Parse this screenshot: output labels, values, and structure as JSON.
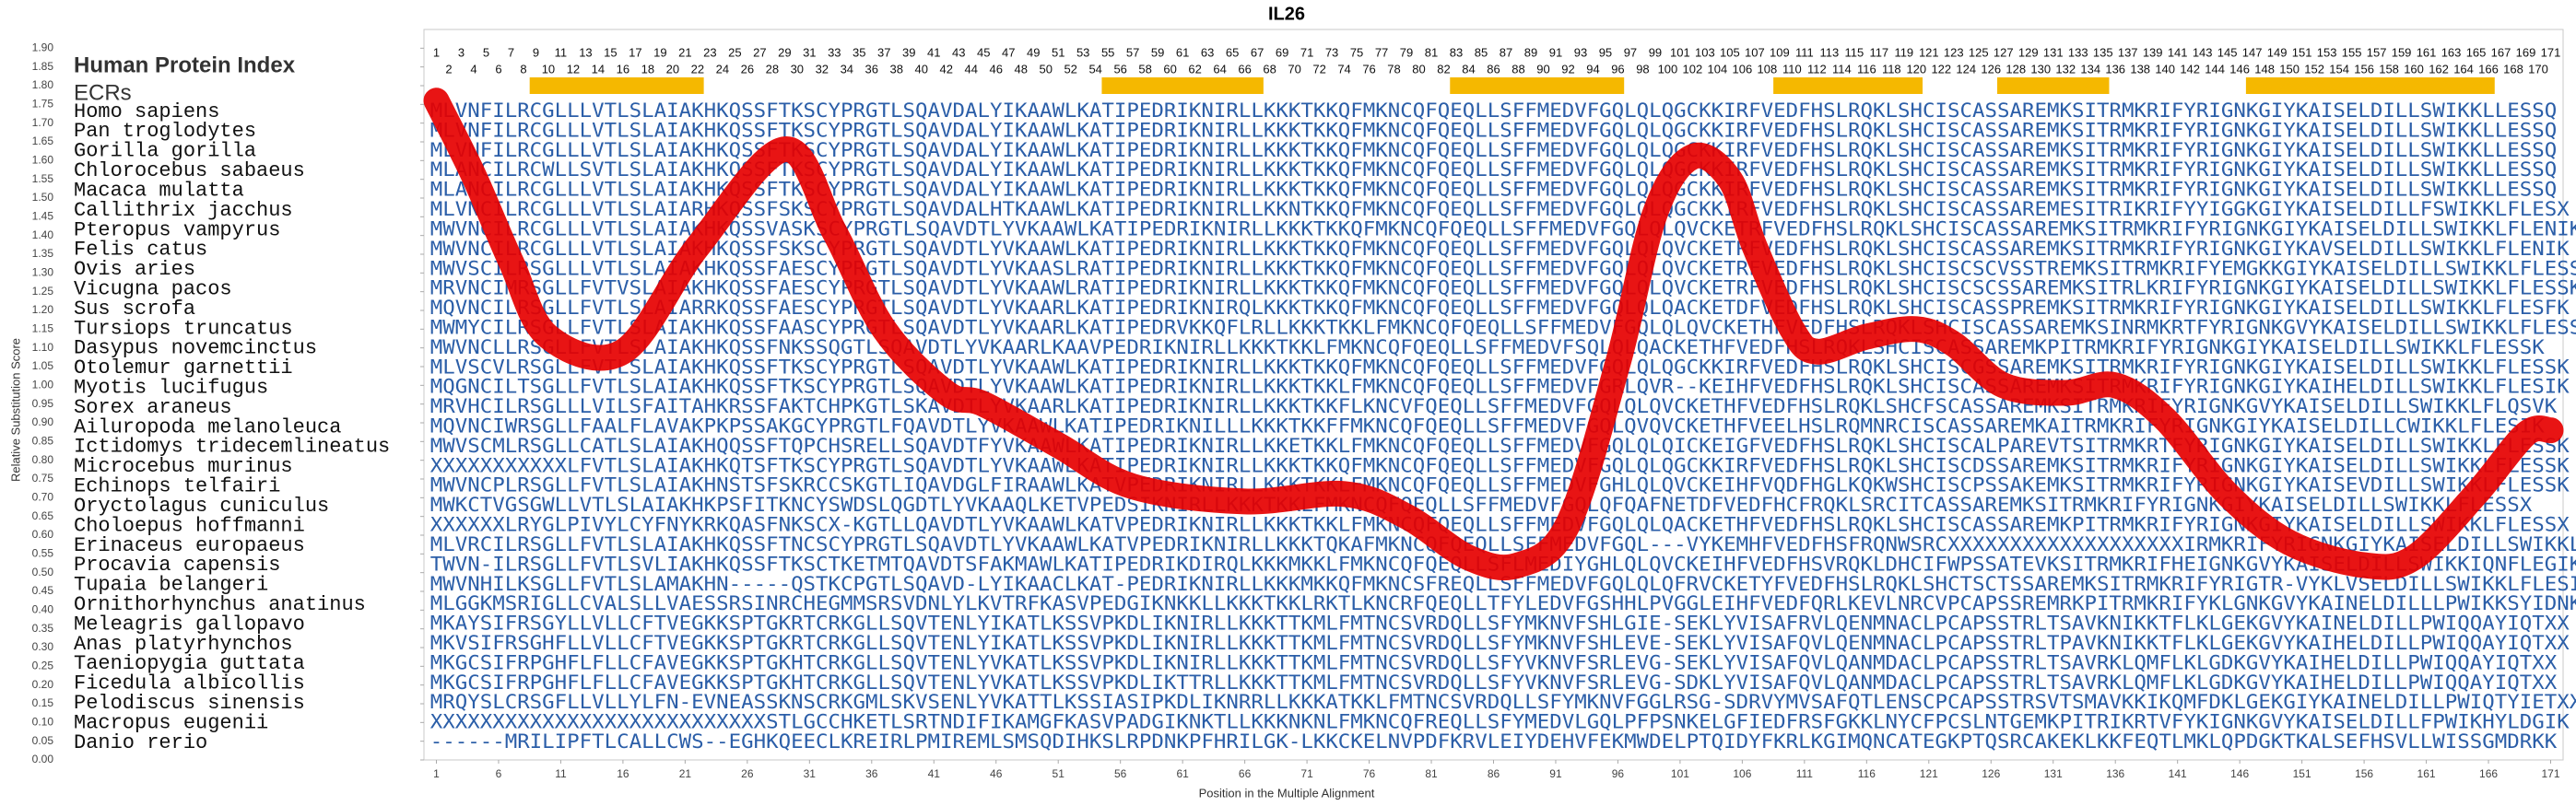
{
  "chart_data": {
    "type": "line",
    "title": "IL26",
    "xlabel": "Position in the Multiple Alignment",
    "ylabel": "Relative Substitution Score",
    "index_title": "Human Protein Index",
    "ecr_title": "ECRs",
    "xlim": [
      0,
      172
    ],
    "ylim": [
      0,
      1.95
    ],
    "xticks": [
      1,
      6,
      11,
      16,
      21,
      26,
      31,
      36,
      41,
      46,
      51,
      56,
      61,
      66,
      71,
      76,
      81,
      86,
      91,
      96,
      101,
      106,
      111,
      116,
      121,
      126,
      131,
      136,
      141,
      146,
      151,
      156,
      161,
      166,
      171
    ],
    "yticks": [
      {
        "value": 0,
        "label": "0.00"
      },
      0.05,
      {
        "value": 0.1,
        "label": "0.10"
      },
      0.15,
      {
        "value": 0.2,
        "label": "0.20"
      },
      0.25,
      {
        "value": 0.3,
        "label": "0.30"
      },
      0.35,
      {
        "value": 0.4,
        "label": "0.40"
      },
      0.45,
      {
        "value": 0.5,
        "label": "0.50"
      },
      0.55,
      {
        "value": 0.6,
        "label": "0.60"
      },
      0.65,
      {
        "value": 0.7,
        "label": "0.70"
      },
      0.75,
      {
        "value": 0.8,
        "label": "0.80"
      },
      0.85,
      {
        "value": 0.9,
        "label": "0.90"
      },
      0.95,
      {
        "value": 1,
        "label": "1.00"
      },
      1.05,
      {
        "value": 1.1,
        "label": "1.10"
      },
      1.15,
      {
        "value": 1.2,
        "label": "1.20"
      },
      1.25,
      {
        "value": 1.3,
        "label": "1.30"
      },
      1.35,
      {
        "value": 1.4,
        "label": "1.40"
      },
      1.45,
      {
        "value": 1.5,
        "label": "1.50"
      },
      1.55,
      {
        "value": 1.6,
        "label": "1.60"
      },
      1.65,
      {
        "value": 1.7,
        "label": "1.70"
      },
      1.75,
      {
        "value": 1.8,
        "label": "1.80"
      },
      1.85,
      {
        "value": 1.9,
        "label": "1.90"
      }
    ],
    "protein_index": [
      1,
      2,
      3,
      4,
      5,
      6,
      7,
      8,
      9,
      10,
      11,
      12,
      13,
      14,
      15,
      16,
      17,
      18,
      19,
      20,
      21,
      22,
      23,
      24,
      25,
      26,
      27,
      28,
      29,
      30,
      31,
      32,
      33,
      34,
      35,
      36,
      37,
      38,
      39,
      40,
      41,
      42,
      43,
      44,
      45,
      46,
      47,
      48,
      49,
      50,
      51,
      52,
      53,
      54,
      55,
      56,
      57,
      58,
      59,
      60,
      61,
      62,
      63,
      64,
      65,
      66,
      67,
      68,
      69,
      70,
      71,
      72,
      73,
      74,
      75,
      76,
      77,
      78,
      79,
      80,
      81,
      82,
      83,
      84,
      85,
      86,
      87,
      88,
      89,
      90,
      91,
      92,
      93,
      94,
      95,
      96,
      97,
      98,
      99,
      100,
      101,
      102,
      103,
      104,
      105,
      106,
      107,
      108,
      109,
      110,
      111,
      112,
      113,
      114,
      115,
      116,
      117,
      118,
      119,
      120,
      121,
      122,
      123,
      124,
      125,
      126,
      127,
      128,
      129,
      130,
      131,
      132,
      133,
      134,
      135,
      136,
      137,
      138,
      139,
      140,
      141,
      142,
      143,
      144,
      145,
      146,
      147,
      148,
      149,
      150,
      151,
      152,
      153,
      154,
      155,
      156,
      157,
      158,
      159,
      160,
      161,
      162,
      163,
      164,
      165,
      166,
      167,
      168,
      169,
      170,
      171
    ],
    "ecr_color": "#f5b800",
    "ecrs": [
      {
        "start": 9,
        "end": 22
      },
      {
        "start": 55,
        "end": 67
      },
      {
        "start": 83,
        "end": 96
      },
      {
        "start": 109,
        "end": 120
      },
      {
        "start": 127,
        "end": 135
      },
      {
        "start": 147,
        "end": 166
      }
    ],
    "species": [
      {
        "name": "Homo sapiens",
        "sequence": "MLVNFILRCGLLLVTLSLAIAKHKQSSFTKSCYPRGTLSQAVDALYIKAAWLKATIPEDRIKNIRLLKKKTKKQFMKNCQFQEQLLSFFMEDVFGQLQLQGCKKIRFVEDFHSLRQKLSHCISCASSAREMKSITRMKRIFYRIGNKGIYKAISELDILLSWIKKLLESSQ"
      },
      {
        "name": "Pan troglodytes",
        "sequence": "MLVNFILRCGLLLVTLSLAIAKHKQSSFTKSCYPRGTLSQAVDALYIKAAWLKATIPEDRIKNIRLLKKKTKKQFMKNCQFQEQLLSFFMEDVFGQLQLQGCKKIRFVEDFHSLRQKLSHCISCASSAREMKSITRMKRIFYRIGNKGIYKAISELDILLSWIKKLLESSQ"
      },
      {
        "name": "Gorilla gorilla",
        "sequence": "MLVNFILRCGLLLVTLSLAIAKHKQSSFTKSCYPRGTLSQAVDALYIKAAWLKATIPEDRIKNIRLLKKKTKKQFMKNCQFQEQLLSFFMEDVFGQLQLQGCKKIRFVEDFHSLRQKLSHCISCASSAREMKSITRMKRIFYRIGNKGIYKAISELDILLSWIKKLLESSQ"
      },
      {
        "name": "Chlorocebus sabaeus",
        "sequence": "MLANCILRCWLLSVTLSLAIAKHKQSSFTKSCYPRGTLSQAVDALYIKAAWLKATIPEDRIKNIRLLKKKTKKQFMKNCQFQEQLLSFFMEDVFGQLQLQGCKKIRFVEDFHSLRQKLSHCISCASSAREMKSITRMKRIFYRIGNKGIYKAISELDILLSWIKKLLESSQ"
      },
      {
        "name": "Macaca mulatta",
        "sequence": "MLANCILRCGLLLVTLSLAIAKHKQSSFTKSCYPRGTLSQAVDALYIKAAWLKATIPEDRIKNIRLLKKKTKKQFMKNCQFQEQLLSFFMEDVFGQLQLQGCKKIRFVEDFHSLRQKLSHCISCASSAREMKSITRMKRIFYRIGNKGIYKAISELDILLSWIKKLLESSQ"
      },
      {
        "name": "Callithrix jacchus",
        "sequence": "MLVNCILRCGLLLVTLSLAIARHKQSSFSKSCYPRGTLSQAVDALHTKAAWLKATIPEDRIKNIRLLKKNTKKQFMKNCQFQEQLLSFFMEDVFGQLQLQGCKKIRFVEDFHSLRQKLSHCISCASSAREMESITRIKRIFYYIGGKGIYKAISELDILLFSWIKKLFLESX"
      },
      {
        "name": "Pteropus vampyrus",
        "sequence": "MWVNCILRCGLLLVTLSLAIAKHKQSSVASKSCYPRGTLSQAVDTLYVKAAWLKATIPEDRIKNIRLLKKKTKKQFMKNCQFQEQLLSFFMEDVFGQLQLQVCKETRFVEDFHSLRQKLSHCISCASSAREMKSITRMKRIFYRIGNKGIYKAISELDILLSWIKKLFLENIK"
      },
      {
        "name": "Felis catus",
        "sequence": "MWVNCILRCGLLLVTLSLAIAKHKQSSFSKSCYPRGTLSQAVDTLYVKAAWLKATIPEDRIKNIRLLKKKTKKQFMKNCQFQEQLLSFFMEDVFGQLQLQVCKETRFVEDFHSLRQKLSHCISCASSAREMKSITRMKRIFYRIGNKGIYKAVSELDILLSWIKKLFLENIK"
      },
      {
        "name": "Ovis aries",
        "sequence": "MWVSCILRSGLLLVTLSLAIAKHKQSSFAESCYPRGTLSQAVDTLYVKAASLRATIPEDRIKNIRLLKKKTKKQFMKNCQFQEQLLSFFMEDVFGQLQLQVCKETRFVEDFHSLRQKLSHCISCSCVSSTREMKSITRMKRIFYEMGKKGIYKAISELDILLSWIKKLFLESSK"
      },
      {
        "name": "Vicugna pacos",
        "sequence": "MRVNCIMRSGLLFVTVSLAIAKHKQSSFAESCYPRGTLSQAVDTLYVKAAWLRATIPEDRIKNIRLLKKKTKKQFMKNCQFQEQLLSFFMEDVFGQLQLQVCKETRFVEDFHSLRQKLSHCISCSCSSAREMKSITRLKRIFYRIGNKGIYKAISELDILLSWIKKLFLESSK"
      },
      {
        "name": "Sus scrofa",
        "sequence": "MQVNCILRSGLLFVTLSLAIARRKQSSFAESCYPRGTLSQAVDTLYVKAARLKATIPEDRIKNIRQLKKKTKKQFMKNCQFQEQLLSFFMEDVFGQLQLQACKETDFVEDFHSLRQKLSHCISCASSPREMKSITRMKRIFYRIGNKGIYKAISELDILLSWIKKLFLESFK"
      },
      {
        "name": "Tursiops truncatus",
        "sequence": "MWMYCILRSGLLFVTLSLAIAKHKQSSFAASCYPRGTLSQAVDTLYVKAARLKATIPEDRVKKQFLRLLKKKTKKLFMKNCQFQEQLLSFFMEDVFGQLQLQVCKETHFVEDFHSLRQKLSHCISCASSAREMKSINRMKRTFYRIGNKGVYKAISELDILLSWIKKLFLESSK"
      },
      {
        "name": "Dasypus novemcinctus",
        "sequence": "MWVNCLLRSGLLFVTLSLAIAKHKQSSFNKSSQGTLSQAVDTLYVKAARLKAAVPEDRIKNIRLLKKKTKKLFMKNCQFQEQLLSFFMEDVFSQLQLQACKETHFVEDFHSLRQKLSHCISCASSAREMKPITRMKRIFYRIGNKGIYKAISELDILLSWIKKLFLESSK"
      },
      {
        "name": "Otolemur garnettii",
        "sequence": "MLVSCVLRSGLLFVTLSLAIAKHKQSSFTKSCYPRGTLSQAVDTLYVKAAWLKATIPEDRIKNIRLLKKKTKKQFMKNCQFQEQLLSFFMEDVFGQLQLQGCKKIRFVEDFHSLRQKLSHCISCGSSAREMKSITRMKRIFYRIGNKGIYKAISELDILLSWIKKLFLESSK"
      },
      {
        "name": "Myotis lucifugus",
        "sequence": "MQGNCILTSGLLFVTLSLAIAKHKQSSFTKSCYPRGTLSQAVDTLYVKAAWLKATIPEDRIKNIRLLKKKTKKLFMKNCQFQEQLLSFFMEDVFGRLQVR--KEIHFVEDFHSLRQKLSHCISCASSAREMKSITRMKRIFYRIGNKGIYKAIHELDILLSWIKKLFLESIK"
      },
      {
        "name": "Sorex araneus",
        "sequence": "MRVHCILRSGLLLVILSFAITAHKRSSFAKTCHPKGTLSKAVDTLYVKAARLKATIPEDRIKNIRLLKKKTKKFLKNCVFQEQLLSFFMEDVFGQLQLQVCKETHFVEDFHSLRQKLSHCFSCASSAREMKSITRMKRIFYRIGNKGVYKAISELDILLSWIKKLFLQSVK"
      },
      {
        "name": "Ailuropoda melanoleuca",
        "sequence": "MQVNCIWRSGLLFAALFLAVAKPKPSSAKGCYPRGTLFQAVDTLYVKAAWLKATIPEDRIKNILLLKKKTKKFFMKNCQFQEQLLSFFMEDVFGQLQVQVCKETHFVEELHSLRQMNRCISCASSAREMKAITRMKRIFYRIGNKGIYKAISELDILLCWIKKLFLESIK"
      },
      {
        "name": "Ictidomys tridecemlineatus",
        "sequence": "MWVSCMLRSGLLCATLSLAIAKHQQSSFTQPCHSRELLSQAVDTFYVKAAWLKATIPEDRIKNIRLLKKETKKLFMKNCQFQEQLLSFFMEDVFGQLQLQICKEIGFVEDFHSLRQKLSHCISCALPAREVTSITRMKRTFYRIGNKGIYKAISELDILLSWIKKLFLESSK"
      },
      {
        "name": "Microcebus murinus",
        "sequence": "XXXXXXXXXXXLFVTLSLAIAKHKQTSFTKSCYPRGTLSQAVDTLYVKAAWLKATIPEDRIKNIRLLKKKTKKQFMKNCQFQEQLLSFFMEDVFGQLQLQGCKKIRFVEDFHSLRQKLSHCISCDSSAREMKSITRMKRIFYRIGNKGIYKAISELDILLSWIKKLFLESSK"
      },
      {
        "name": "Echinops telfairi",
        "sequence": "MWVNCPLRSGLLFVTLSLAIAKHNSTSFSKRCCSKGTLIQAVDGLFIRAAWLKATVPEDRIKNIRLLKKKTKKLFMKNCQFQEQLLSFFMEDVFGHLQLQVCKEIHFVQDFHGLKQKWSHCISCPSSAKEMKSITRMKRIFYRIGNKGIYKAISEVDILLSWIKKLFLESSK"
      },
      {
        "name": "Oryctolagus cuniculus",
        "sequence": "MWKCTVGSGWLLVTLSLAIAKHKPSFITKNCYSWDSLQGDTLYVKAAQLKETVPEDSIKNIRLLKKKTKKLFMKNCQFQEQLLSFFMEDVFGQLQFQAFNETDFVEDFHCFRQKLSRCITCASSAREMKSITRMKRIFYRIGNKGIYKAISELDILLSWIKKLFLESSX"
      },
      {
        "name": "Choloepus hoffmanni",
        "sequence": "XXXXXXLRYGLPIVYLCYFNYKRKQASFNKSCX-KGTLLQAVDTLYVKAAWLKATVPEDRIKNIRLLKKKTKKLFMKNCQFQEQLLSFFMEDVFGQLQLQACKETHFVEDFHSLRQKLSHCISCASSAREMKPITRMKRIFYRIGNKGIYKAISELDILLSWIKKLFLESSX"
      },
      {
        "name": "Erinaceus europaeus",
        "sequence": "MLVRCILRSGLLFVTLSLAIAKHKQSSFTNCSCYPRGTLSQAVDTLYVKAAWLKATVPEDRIKNIRLLKKKTQKAFMKNCQFQEQLLSFFMEDVFGQL---VYKEMHFVEDFHSFRQNWSRCXXXXXXXXXXXXXXXXXXXIRMKRIFYRIGNKGIYKAISELDILLSWIKKLFLESVK"
      },
      {
        "name": "Procavia capensis",
        "sequence": "TWVN-ILRSGLLFVTLSVLIAKHKQSSFTKSCTKETMTQAVDTSFAKMAWLKATIPEDRIKDIRQLKKKMKKLFMKNCQFQEQLLSFLMEDIYGHLQLQVCKEIHFVEDFHSVRQKLDHCIFWPSSATEVKSITRMKRIFHEIGNKGVYKAISELDILLSWIKKIQNFLEGIK"
      },
      {
        "name": "Tupaia belangeri",
        "sequence": "MWVNHILKSGLLFVTLSLAMAKHN-----QSTKCPGTLSQAVD-LYIKAACLKAT-PEDRIKNIRLLKKKMKKQFMKNCSFREQLLSFFMEDVFGQLQLQFRVCKETYFVEDFHSLRQKLSHCTSCTSSAREMKSITRMKRIFYRIGTR-VYKLVSELDILLSWIKKLFLESI-"
      },
      {
        "name": "Ornithorhynchus anatinus",
        "sequence": "MLGGKMSRIGLLCVALSLLVAESSRSINRCHEGMMSRSVDNLYLKVTRFKASVPEDGIKNKKLLKKKTKKLRKTLKNCRFQEQLLTFYLEDVFGSHHLPVGGLEIHFVEDFQRLKEVLNRCVPCAPSSREMRKPITRMKRIFYKLGNKGVYKAINELDILLLPWIKKSYIDNK"
      },
      {
        "name": "Meleagris gallopavo",
        "sequence": "MKAYSIFRSGYLLVLLCFTVEGKKSPTGKRTCRKGLLSQVTENLYIKATLKSSVPKDLIKNIRLLKKKTTKMLFMTNCSVRDQLLSFYMKNVFSHLGIE-SEKLYVISAFRVLQENMNACLPCAPSSTRLTSAVKNIKKTFLKLGEKGVYKAINELDILLPWIQQAYIQTXX"
      },
      {
        "name": "Anas platyrhynchos",
        "sequence": "MKVSIFRSGHFLLVLLCFTVEGKKSPTGKRTCRKGLLSQVTENLYIKATLKSSVPKDLIKNIRLLKKKTTKMLFMTNCSVRDQLLSFYMKNVFSHLEVE-SEKLYVISAFQVLQENMNACLPCAPSSTRLTPAVKNIKKTFLKLGEKGVYKAIHELDILLPWIQQAYIQTXX"
      },
      {
        "name": "Taeniopygia guttata",
        "sequence": "MKGCSIFRPGHFLFLLCFAVEGKKSPTGKHTCRKGLLSQVTENLYVKATLKSSVPKDLIKNIRLLKKKTTKMLFMTNCSVRDQLLSFYVKNVFSRLEVG-SEKLYVISAFQVLQANMDACLPCAPSSTRLTSAVRKLQMFLKLGDKGVYKAIHELDILLPWIQQAYIQTXX"
      },
      {
        "name": "Ficedula albicollis",
        "sequence": "MKGCSIFRPGHFLFLLCFAVEGKKSPTGKHTCRKGLLSQVTENLYVKATLKSSVPKDLIKTTRLLKKKTTKMLFMTNCSVRDQLLSFYVKNVFSRLEVG-SDKLYVISAFQVLQANMDACLPCAPSSTRLTSAVRKLQMFLKLGDKGVYKAIHELDILLPWIQQAYIQTXX"
      },
      {
        "name": "Pelodiscus sinensis",
        "sequence": "MRQYSLCRSGFLLVLLYLFN-EVNEASSKNSCRKGMLSKVSENLYVKATTLKSSIASIPKDLIKNRRLLKKKATKKLFMTNCSVRDQLLSFYMKNVFGGLRSG-SDRVYMVSAFQTLENSCPCAPSSTRSVTSMAVKKIKQMFDKLGEKGIYKAINELDILLPWIQTYIETXX"
      },
      {
        "name": "Macropus eugenii",
        "sequence": "XXXXXXXXXXXXXXXXXXXXXXXXXXXSTLGCCHKETLSRTNDIFIKAMGFKASVPADGIKNKTLLKKKNKNLFMKNCQFREQLLSFYMEDVLGQLPFPSNKELGFIEDFRSFGKKLNYCFPCSLNTGEMKPITRIKRTVFYKIGNKGVYKAISELDILLFPWIKHYLDGIK"
      },
      {
        "name": "Danio rerio",
        "sequence": "------MRILIPFTLCALLCWS--EGHKQEECLKREIRLPMIREMLSMSQDIHKSLRPDNKPFHRILGK-LKKCKELNVPDFKRVLEIYDEHVFEKMWDELPTQIDYFKRLKGIMQNCATEGKPTQSRCAKEKLKKFEQTLMKLQPDGKTKALSEFHSVLLWISSGMDRKK"
      }
    ],
    "series": [
      {
        "color": "#e60000",
        "x": [
          1,
          4,
          7,
          10,
          16,
          22,
          29,
          33,
          37,
          42,
          45,
          51,
          57,
          66,
          74,
          79,
          84,
          88,
          92,
          96,
          99,
          102,
          105,
          107,
          110,
          112,
          116,
          120,
          123,
          127,
          132,
          136,
          140,
          145,
          150,
          156,
          160,
          165,
          169,
          171
        ],
        "values": [
          1.76,
          1.56,
          1.33,
          1.13,
          1.09,
          1.37,
          1.63,
          1.41,
          1.15,
          0.98,
          0.95,
          0.84,
          0.73,
          0.69,
          0.71,
          0.65,
          0.54,
          0.52,
          0.63,
          1.06,
          1.46,
          1.61,
          1.55,
          1.37,
          1.15,
          1.09,
          1.13,
          1.15,
          1.11,
          1.0,
          0.98,
          1.0,
          0.91,
          0.71,
          0.58,
          0.52,
          0.54,
          0.71,
          0.87,
          0.88
        ]
      }
    ]
  }
}
